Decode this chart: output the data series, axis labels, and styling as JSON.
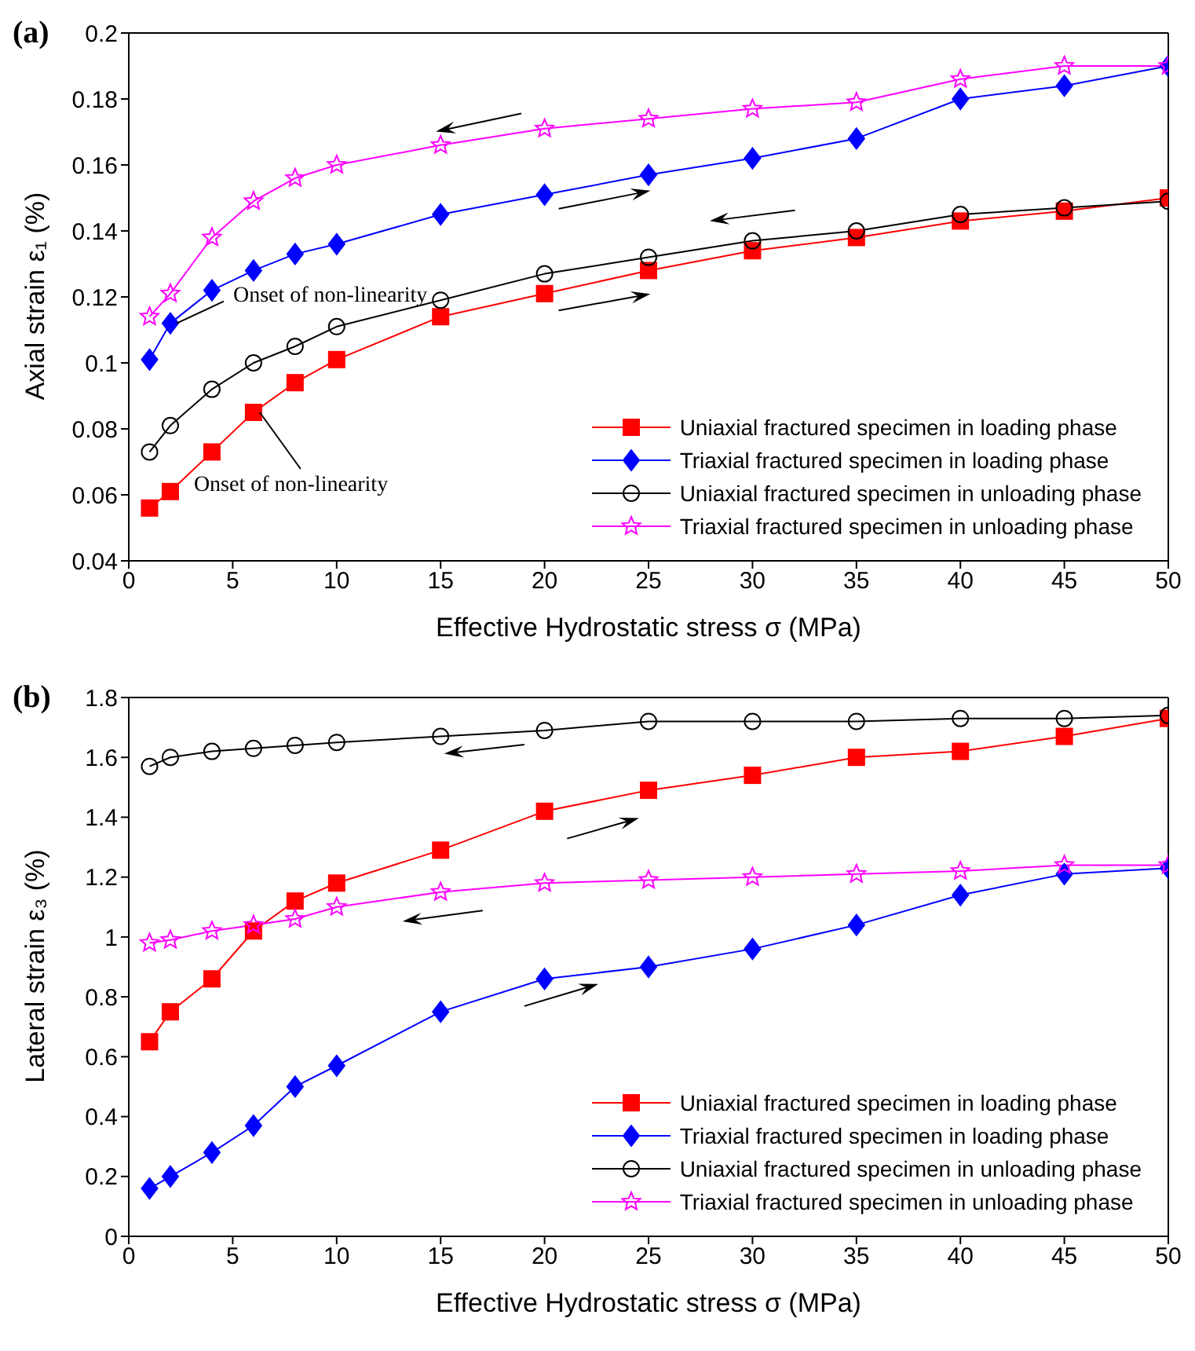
{
  "chart_data": [
    {
      "type": "line",
      "title": "(a)",
      "xlabel": "Effective Hydrostatic stress σ (MPa)",
      "ylabel": "Axial strain ε₁ (%)",
      "x": [
        1,
        2,
        4,
        6,
        8,
        10,
        15,
        20,
        25,
        30,
        35,
        40,
        45,
        50
      ],
      "xlim": [
        0,
        50
      ],
      "xticks": [
        0,
        5,
        10,
        15,
        20,
        25,
        30,
        35,
        40,
        45,
        50
      ],
      "ylim": [
        0.04,
        0.2
      ],
      "yticks": [
        0.04,
        0.06,
        0.08,
        0.1,
        0.12,
        0.14,
        0.16,
        0.18,
        0.2
      ],
      "legend": "bottom right",
      "line_style": "solid",
      "series": [
        {
          "name": "Uniaxial fractured specimen in loading phase",
          "color": "#ff0000",
          "marker": "square",
          "values": [
            0.056,
            0.061,
            0.073,
            0.085,
            0.094,
            0.101,
            0.114,
            0.121,
            0.128,
            0.134,
            0.138,
            0.143,
            0.146,
            0.15
          ]
        },
        {
          "name": "Triaxial fractured specimen in loading phase",
          "color": "#0000ff",
          "marker": "diamond",
          "values": [
            0.101,
            0.112,
            0.122,
            0.128,
            0.133,
            0.136,
            0.145,
            0.151,
            0.157,
            0.162,
            0.168,
            0.18,
            0.184,
            0.19
          ]
        },
        {
          "name": "Uniaxial fractured specimen in unloading phase",
          "color": "#000000",
          "marker": "circle",
          "values": [
            0.073,
            0.081,
            0.092,
            0.1,
            0.105,
            0.111,
            0.119,
            0.127,
            0.132,
            0.137,
            0.14,
            0.145,
            0.147,
            0.149
          ]
        },
        {
          "name": "Triaxial fractured specimen in unloading phase",
          "color": "#ff00ff",
          "marker": "star",
          "values": [
            0.114,
            0.121,
            0.138,
            0.149,
            0.156,
            0.16,
            0.166,
            0.171,
            0.174,
            0.177,
            0.179,
            0.186,
            0.19,
            0.19
          ]
        }
      ],
      "annotations": [
        {
          "text": "Onset of non-linearity",
          "x": 2,
          "y": 0.112
        },
        {
          "text": "Onset of non-linearity",
          "x": 6,
          "y": 0.085
        }
      ]
    },
    {
      "type": "line",
      "title": "(b)",
      "xlabel": "Effective Hydrostatic stress σ (MPa)",
      "ylabel": "Lateral strain ε₃ (%)",
      "x": [
        1,
        2,
        4,
        6,
        8,
        10,
        15,
        20,
        25,
        30,
        35,
        40,
        45,
        50
      ],
      "xlim": [
        0,
        50
      ],
      "xticks": [
        0,
        5,
        10,
        15,
        20,
        25,
        30,
        35,
        40,
        45,
        50
      ],
      "ylim": [
        0,
        1.8
      ],
      "yticks": [
        0,
        0.2,
        0.4,
        0.6,
        0.8,
        1,
        1.2,
        1.4,
        1.6,
        1.8
      ],
      "legend": "bottom right",
      "line_style": "solid",
      "series": [
        {
          "name": "Uniaxial fractured specimen in loading phase",
          "color": "#ff0000",
          "marker": "square",
          "values": [
            0.65,
            0.75,
            0.86,
            1.02,
            1.12,
            1.18,
            1.29,
            1.42,
            1.49,
            1.54,
            1.6,
            1.62,
            1.67,
            1.73
          ]
        },
        {
          "name": "Triaxial fractured specimen in loading phase",
          "color": "#0000ff",
          "marker": "diamond",
          "values": [
            0.16,
            0.2,
            0.28,
            0.37,
            0.5,
            0.57,
            0.75,
            0.86,
            0.9,
            0.96,
            1.04,
            1.14,
            1.21,
            1.23
          ]
        },
        {
          "name": "Uniaxial fractured specimen in unloading phase",
          "color": "#000000",
          "marker": "circle",
          "values": [
            1.57,
            1.6,
            1.62,
            1.63,
            1.64,
            1.65,
            1.67,
            1.69,
            1.72,
            1.72,
            1.72,
            1.73,
            1.73,
            1.74
          ]
        },
        {
          "name": "Triaxial fractured specimen in unloading phase",
          "color": "#ff00ff",
          "marker": "star",
          "values": [
            0.98,
            0.99,
            1.02,
            1.04,
            1.06,
            1.1,
            1.15,
            1.18,
            1.19,
            1.2,
            1.21,
            1.22,
            1.24,
            1.24
          ]
        }
      ]
    }
  ]
}
